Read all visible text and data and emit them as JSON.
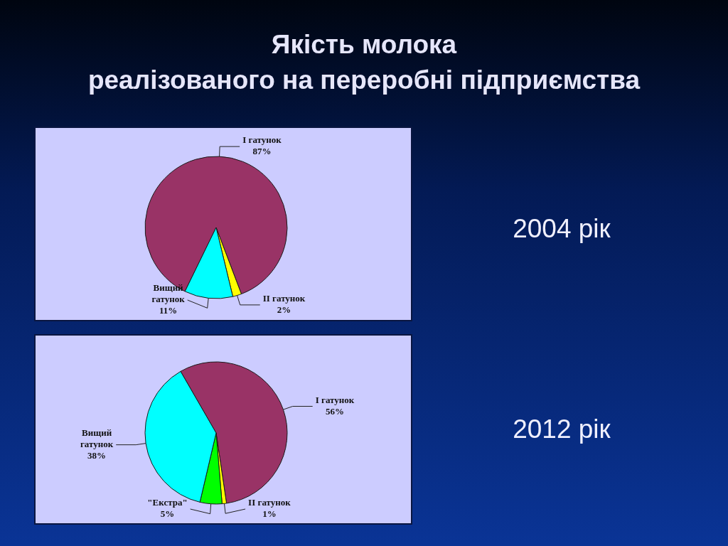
{
  "chart_data": [
    {
      "type": "pie",
      "title": "Якість молока\nреалізованого на переробні підприємства",
      "subtitle": "2004 рік",
      "categories": [
        "І гатунок",
        "ІІ гатунок",
        "Вищий гатунок"
      ],
      "values": [
        87,
        2,
        11
      ],
      "colors": [
        "#993366",
        "#ffff00",
        "#00ffff"
      ],
      "value_labels": [
        "87%",
        "2%",
        "11%"
      ]
    },
    {
      "type": "pie",
      "subtitle": "2012 рік",
      "categories": [
        "І гатунок",
        "ІІ гатунок",
        "\"Екстра\"",
        "Вищий гатунок"
      ],
      "values": [
        56,
        1,
        5,
        38
      ],
      "colors": [
        "#993366",
        "#ffff00",
        "#00ff00",
        "#00ffff"
      ],
      "value_labels": [
        "56%",
        "1%",
        "5%",
        "38%"
      ]
    }
  ]
}
